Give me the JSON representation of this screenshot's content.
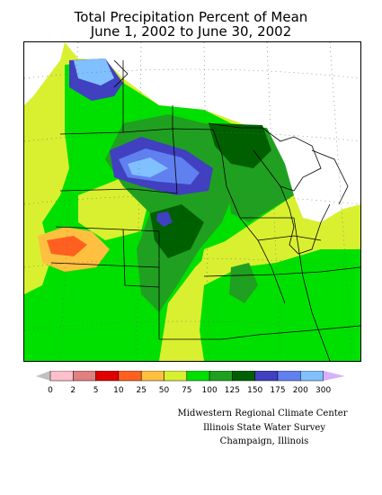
{
  "title": {
    "line1": "Total Precipitation Percent of Mean",
    "line2": "June 1, 2002 to June 30, 2002"
  },
  "legend": {
    "ticks": [
      "0",
      "2",
      "5",
      "10",
      "25",
      "50",
      "75",
      "100",
      "125",
      "150",
      "175",
      "200",
      "300"
    ],
    "colors": [
      "#ffc0cb",
      "#e08080",
      "#e00000",
      "#ff6020",
      "#ffc040",
      "#d8f030",
      "#00e000",
      "#20a020",
      "#006000",
      "#4040c0",
      "#6080f0",
      "#80c0ff"
    ],
    "arrow_low_color": "#c0c0c0",
    "arrow_high_color": "#d8b0f8"
  },
  "credits": {
    "line1": "Midwestern Regional Climate Center",
    "line2": "Illinois State Water Survey",
    "line3": "Champaign, Illinois"
  }
}
